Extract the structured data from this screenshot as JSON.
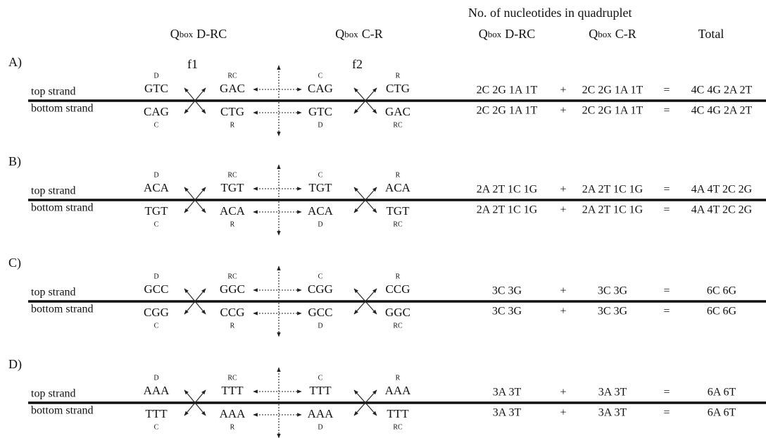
{
  "header": {
    "title": "No. of nucleotides in quadruplet",
    "left_columns": [
      {
        "q": "Q",
        "sub": "box",
        "name": "D-RC"
      },
      {
        "q": "Q",
        "sub": "box",
        "name": "C-R"
      }
    ],
    "count_columns": [
      {
        "q": "Q",
        "sub": "box",
        "name": "D-RC"
      },
      {
        "q": "Q",
        "sub": "box",
        "name": "C-R"
      }
    ],
    "total": "Total",
    "frames": [
      "f1",
      "f2"
    ]
  },
  "panels": [
    {
      "label": "A)",
      "top_strand": "top strand",
      "bottom_strand": "bottom strand",
      "top_tags": [
        "D",
        "RC",
        "C",
        "R"
      ],
      "top_codons": [
        "GTC",
        "GAC",
        "CAG",
        "CTG"
      ],
      "bottom_codons": [
        "CAG",
        "CTG",
        "GTC",
        "GAC"
      ],
      "bottom_tags": [
        "C",
        "R",
        "D",
        "RC"
      ],
      "top_counts": [
        "2C 2G 1A 1T",
        "+",
        "2C 2G 1A 1T",
        "=",
        "4C 4G 2A 2T"
      ],
      "bottom_counts": [
        "2C 2G 1A 1T",
        "+",
        "2C 2G 1A 1T",
        "=",
        "4C 4G 2A 2T"
      ]
    },
    {
      "label": "B)",
      "top_strand": "top strand",
      "bottom_strand": "bottom strand",
      "top_tags": [
        "D",
        "RC",
        "C",
        "R"
      ],
      "top_codons": [
        "ACA",
        "TGT",
        "TGT",
        "ACA"
      ],
      "bottom_codons": [
        "TGT",
        "ACA",
        "ACA",
        "TGT"
      ],
      "bottom_tags": [
        "C",
        "R",
        "D",
        "RC"
      ],
      "top_counts": [
        "2A 2T 1C 1G",
        "+",
        "2A 2T 1C 1G",
        "=",
        "4A 4T 2C 2G"
      ],
      "bottom_counts": [
        "2A 2T 1C 1G",
        "+",
        "2A 2T 1C 1G",
        "=",
        "4A 4T 2C 2G"
      ]
    },
    {
      "label": "C)",
      "top_strand": "top strand",
      "bottom_strand": "bottom strand",
      "top_tags": [
        "D",
        "RC",
        "C",
        "R"
      ],
      "top_codons": [
        "GCC",
        "GGC",
        "CGG",
        "CCG"
      ],
      "bottom_codons": [
        "CGG",
        "CCG",
        "GCC",
        "GGC"
      ],
      "bottom_tags": [
        "C",
        "R",
        "D",
        "RC"
      ],
      "top_counts": [
        "3C 3G",
        "+",
        "3C 3G",
        "=",
        "6C 6G"
      ],
      "bottom_counts": [
        "3C 3G",
        "+",
        "3C 3G",
        "=",
        "6C 6G"
      ]
    },
    {
      "label": "D)",
      "top_strand": "top strand",
      "bottom_strand": "bottom strand",
      "top_tags": [
        "D",
        "RC",
        "C",
        "R"
      ],
      "top_codons": [
        "AAA",
        "TTT",
        "TTT",
        "AAA"
      ],
      "bottom_codons": [
        "TTT",
        "AAA",
        "AAA",
        "TTT"
      ],
      "bottom_tags": [
        "C",
        "R",
        "D",
        "RC"
      ],
      "top_counts": [
        "3A 3T",
        "+",
        "3A 3T",
        "=",
        "6A 6T"
      ],
      "bottom_counts": [
        "3A 3T",
        "+",
        "3A 3T",
        "=",
        "6A 6T"
      ]
    }
  ]
}
